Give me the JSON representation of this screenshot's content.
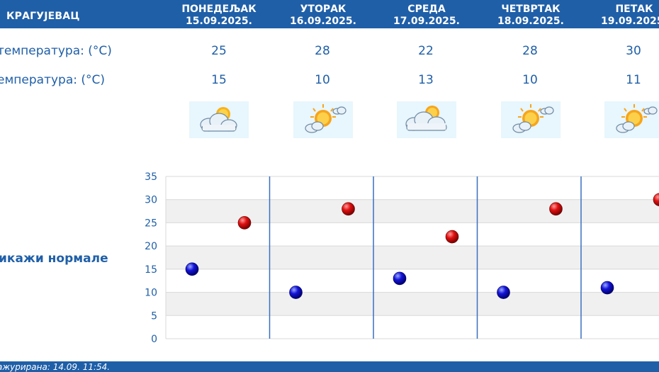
{
  "header": {
    "city": "КРАГУЈЕВАЦ"
  },
  "days": [
    {
      "name": "ПОНЕДЕЉАК",
      "date": "15.09.2025.",
      "max": "25",
      "min": "15",
      "icon": "partly-cloudy-icon"
    },
    {
      "name": "УТОРАК",
      "date": "16.09.2025.",
      "max": "28",
      "min": "10",
      "icon": "mostly-sunny-icon"
    },
    {
      "name": "СРЕДА",
      "date": "17.09.2025.",
      "max": "22",
      "min": "13",
      "icon": "cloudy-sun-icon"
    },
    {
      "name": "ЧЕТВРТАК",
      "date": "18.09.2025.",
      "max": "28",
      "min": "10",
      "icon": "mostly-sunny-icon"
    },
    {
      "name": "ПЕТАК",
      "date": "19.09.2025.",
      "max": "30",
      "min": "11",
      "icon": "mostly-sunny-icon"
    }
  ],
  "labels": {
    "max_temp": "температура: (°C)",
    "min_temp": "емпература: (°C)",
    "icon_row": ":"
  },
  "show_normals": "икажи нормале",
  "footer": {
    "updated": "ажурирана:  14.09. 11:54."
  },
  "colors": {
    "header_bg": "#1f5fa8",
    "max_dot": "#d40000",
    "min_dot": "#1a1acc",
    "icon_bg": "#e8f6fd"
  },
  "chart_data": {
    "type": "scatter",
    "ylim": [
      0,
      35
    ],
    "yticks": [
      0,
      5,
      10,
      15,
      20,
      25,
      30,
      35
    ],
    "categories": [
      "15.09.2025.",
      "16.09.2025.",
      "17.09.2025.",
      "18.09.2025.",
      "19.09.2025."
    ],
    "series": [
      {
        "values": [
          15,
          10,
          13,
          10,
          11
        ],
        "color": "#1a1acc"
      },
      {
        "values": [
          25,
          28,
          22,
          28,
          30
        ],
        "color": "#d40000"
      }
    ],
    "grid": true
  }
}
